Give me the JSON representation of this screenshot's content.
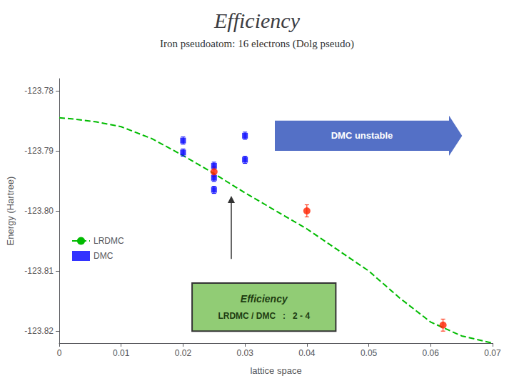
{
  "chart_data": {
    "type": "line",
    "title": "Efficiency",
    "subtitle": "Iron pseudoatom: 16 electrons (Dolg pseudo)",
    "xlabel": "lattice space",
    "ylabel": "Energy (Hartree)",
    "xlim": [
      0,
      0.07
    ],
    "ylim": [
      -123.822,
      -123.778
    ],
    "xticks": [
      0,
      0.01,
      0.02,
      0.03,
      0.04,
      0.05,
      0.06,
      0.07
    ],
    "yticks": [
      -123.78,
      -123.79,
      {
        "value": -123.8,
        "label": "-123.80"
      },
      -123.81,
      -123.82
    ],
    "grid": false,
    "legend": "lower left",
    "series": [
      {
        "name": "LRDMC",
        "type": "line",
        "line_style": "dashed",
        "color": "#00BB00",
        "x": [
          0.0,
          0.003,
          0.006,
          0.01,
          0.015,
          0.02,
          0.025,
          0.03,
          0.035,
          0.04,
          0.045,
          0.05,
          0.055,
          0.06,
          0.065,
          0.07
        ],
        "values": [
          -123.7845,
          -123.7848,
          -123.7852,
          -123.786,
          -123.788,
          -123.7908,
          -123.7938,
          -123.797,
          -123.8,
          -123.803,
          -123.8065,
          -123.81,
          -123.8145,
          -123.8185,
          -123.8208,
          -123.822
        ]
      },
      {
        "name": "DMC",
        "type": "scatter",
        "marker": "square",
        "color": "#0000FF",
        "x": [
          0.02,
          0.02,
          0.025,
          0.025,
          0.025,
          0.03,
          0.03
        ],
        "values": [
          -123.7883,
          -123.7903,
          -123.7925,
          -123.7945,
          -123.7965,
          -123.7875,
          -123.7915
        ],
        "errors": [
          0.0006,
          0.0006,
          0.0006,
          0.0006,
          0.0006,
          0.0006,
          0.0006
        ]
      },
      {
        "type": "scatter",
        "marker": "circle",
        "color": "#FF2200",
        "x": [
          0.025,
          0.04,
          0.062
        ],
        "values": [
          -123.7935,
          -123.8,
          -123.819
        ],
        "errors": [
          0.0008,
          0.001,
          0.001
        ]
      }
    ],
    "annotations": [
      "DMC unstable",
      "Efficiency",
      "LRDMC / DMC   :   2 - 4"
    ]
  }
}
